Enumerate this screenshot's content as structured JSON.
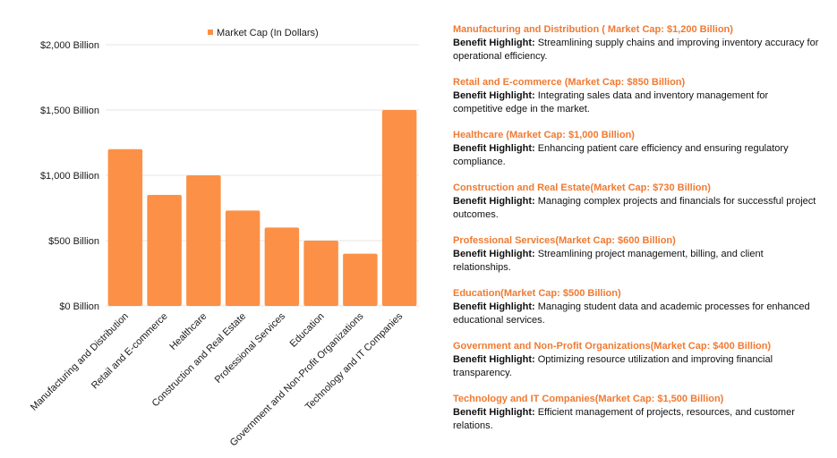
{
  "colors": {
    "bar": "#fc9047",
    "accent_text": "#f07a32",
    "grid": "#e6e6e6",
    "text": "#1a1a1a"
  },
  "chart_data": {
    "type": "bar",
    "legend_label": "Market Cap (In Dollars)",
    "legend_position": "top",
    "categories": [
      "Manufacturing and Distribution",
      "Retail and E-commerce",
      "Healthcare",
      "Construction and Real Estate",
      "Professional Services",
      "Education",
      "Government and Non-Profit Organizations",
      "Technology and IT Companies"
    ],
    "values": [
      1200,
      850,
      1000,
      730,
      600,
      500,
      400,
      1500
    ],
    "ylim": [
      0,
      2000
    ],
    "yticks": [
      {
        "value": 0,
        "label": "$0 Billion"
      },
      {
        "value": 500,
        "label": "$500 Billion"
      },
      {
        "value": 1000,
        "label": "$1,000 Billion"
      },
      {
        "value": 1500,
        "label": "$1,500 Billion"
      },
      {
        "value": 2000,
        "label": "$2,000 Billion"
      }
    ],
    "grid": true
  },
  "benefits": {
    "highlight_label": "Benefit Highlight:",
    "items": [
      {
        "title": "Manufacturing and Distribution ( Market Cap: $1,200 Billion)",
        "text": "Streamlining supply chains and improving inventory accuracy for operational efficiency."
      },
      {
        "title": "Retail and E-commerce (Market Cap: $850 Billion)",
        "text": "Integrating sales data and inventory management for competitive edge in the market."
      },
      {
        "title": "Healthcare (Market Cap: $1,000 Billion)",
        "text": "Enhancing patient care efficiency and ensuring regulatory compliance."
      },
      {
        "title": "Construction and Real Estate(Market Cap: $730 Billion)",
        "text": "Managing complex projects and financials for successful project outcomes."
      },
      {
        "title": "Professional Services(Market Cap: $600 Billion)",
        "text": "Streamlining project management, billing, and client relationships."
      },
      {
        "title": "Education(Market Cap: $500 Billion)",
        "text": "Managing student data and academic processes for enhanced educational services."
      },
      {
        "title": "Government and Non-Profit Organizations(Market Cap: $400 Billion)",
        "text": "Optimizing resource utilization and improving financial transparency."
      },
      {
        "title": "Technology and IT Companies(Market Cap: $1,500 Billion)",
        "text": "Efficient management of projects, resources, and customer relations."
      }
    ]
  }
}
